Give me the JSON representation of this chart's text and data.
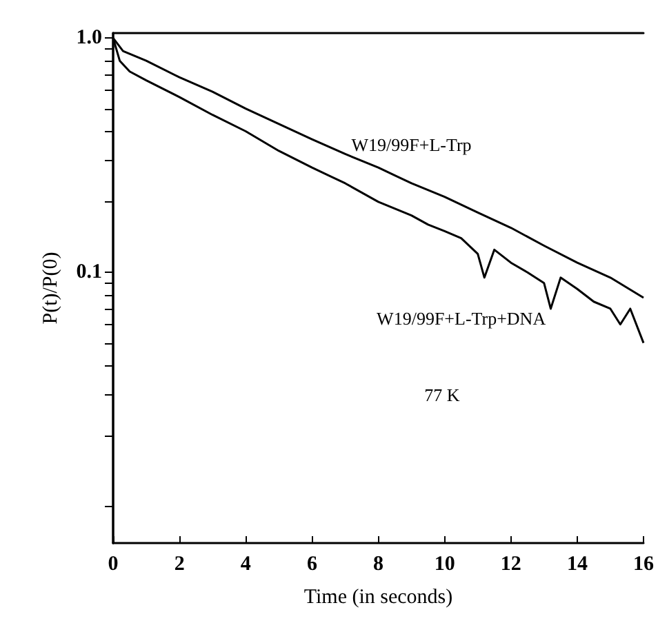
{
  "chart_data": {
    "type": "line",
    "xlabel": "Time (in seconds)",
    "ylabel": "P(t)/P(0)",
    "log": "y",
    "xlim": [
      0,
      16
    ],
    "xticks": [
      0,
      2,
      4,
      6,
      8,
      10,
      12,
      14,
      16
    ],
    "ylim": [
      0.007,
      1.05
    ],
    "yticks": [
      {
        "value": 0.01,
        "label": null
      },
      {
        "value": 0.02,
        "label": null
      },
      {
        "value": 0.03,
        "label": null
      },
      {
        "value": 0.04,
        "label": null
      },
      {
        "value": 0.05,
        "label": null
      },
      {
        "value": 0.06,
        "label": null
      },
      {
        "value": 0.07,
        "label": null
      },
      {
        "value": 0.08,
        "label": null
      },
      {
        "value": 0.09,
        "label": null
      },
      {
        "value": 0.1,
        "label": "0.1"
      },
      {
        "value": 0.2,
        "label": null
      },
      {
        "value": 0.3,
        "label": null
      },
      {
        "value": 0.4,
        "label": null
      },
      {
        "value": 0.5,
        "label": null
      },
      {
        "value": 0.6,
        "label": null
      },
      {
        "value": 0.7,
        "label": null
      },
      {
        "value": 0.8,
        "label": null
      },
      {
        "value": 0.9,
        "label": null
      },
      {
        "value": 1,
        "label": "1.0"
      }
    ],
    "grid": false,
    "series": [
      {
        "name": "W19/99F+L-Trp",
        "color": "#000000",
        "x": [
          0,
          0.3,
          1,
          2,
          3,
          4,
          5,
          6,
          7,
          8,
          9,
          10,
          11,
          12,
          13,
          14,
          15,
          16
        ],
        "values": [
          1.0,
          0.88,
          0.8,
          0.68,
          0.59,
          0.5,
          0.43,
          0.37,
          0.32,
          0.28,
          0.24,
          0.21,
          0.18,
          0.155,
          0.13,
          0.11,
          0.095,
          0.078
        ]
      },
      {
        "name": "W19/99F+L-Trp+DNA",
        "color": "#000000",
        "x": [
          0,
          0.2,
          0.5,
          1,
          2,
          3,
          4,
          5,
          6,
          7,
          8,
          9,
          9.5,
          10,
          10.5,
          11,
          11.2,
          11.5,
          12,
          12.5,
          13,
          13.2,
          13.5,
          14,
          14.5,
          15,
          15.3,
          15.6,
          16
        ],
        "values": [
          1.0,
          0.8,
          0.72,
          0.66,
          0.56,
          0.47,
          0.4,
          0.33,
          0.28,
          0.24,
          0.2,
          0.175,
          0.16,
          0.15,
          0.14,
          0.12,
          0.095,
          0.125,
          0.11,
          0.1,
          0.09,
          0.07,
          0.095,
          0.085,
          0.075,
          0.07,
          0.06,
          0.07,
          0.05
        ]
      }
    ],
    "annotations": [
      "77 K"
    ]
  }
}
